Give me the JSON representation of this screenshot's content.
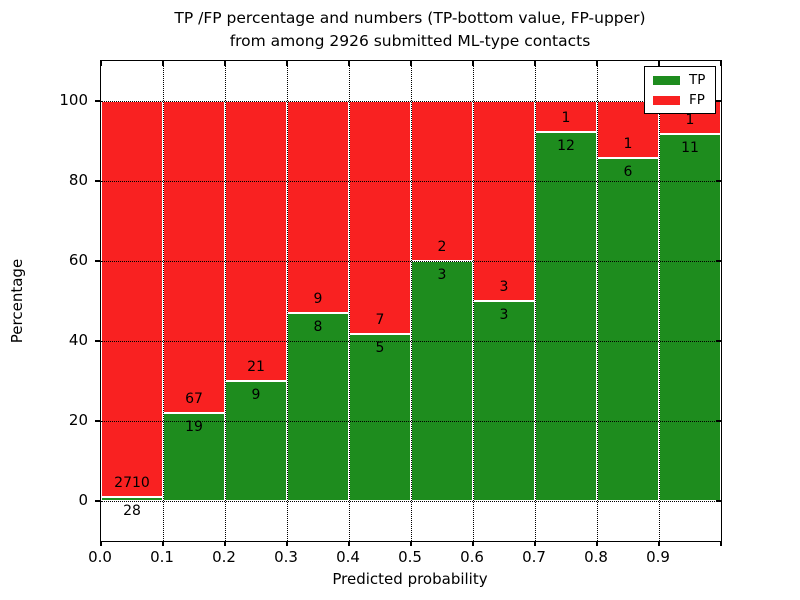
{
  "title": {
    "line1": "TP /FP percentage and numbers (TP-bottom value, FP-upper)",
    "line2": "from among 2926 submitted ML-type contacts"
  },
  "legend": {
    "items": [
      {
        "name": "tp-swatch",
        "label": "TP",
        "color": "#1e8c1e"
      },
      {
        "name": "fp-swatch",
        "label": "FP",
        "color": "#f92121"
      }
    ]
  },
  "chart_data": {
    "type": "bar",
    "stacked": true,
    "normalized": "percent-of-bin",
    "title": "TP /FP percentage and numbers (TP-bottom value, FP-upper) from among 2926 submitted ML-type contacts",
    "xlabel": "Predicted probability",
    "ylabel": "Percentage",
    "total_contacts": 2926,
    "bin_width": 0.1,
    "bin_starts": [
      0.0,
      0.1,
      0.2,
      0.3,
      0.4,
      0.5,
      0.6,
      0.7,
      0.8,
      0.9
    ],
    "xtick_labels": [
      "0.0",
      "0.1",
      "0.2",
      "0.3",
      "0.4",
      "0.5",
      "0.6",
      "0.7",
      "0.8",
      "0.9"
    ],
    "ytick_values": [
      0,
      20,
      40,
      60,
      80,
      100
    ],
    "ylim_visible": [
      0,
      100
    ],
    "grid": {
      "visible": true,
      "style": "dotted",
      "color": "#000000"
    },
    "legend_position": "upper-right",
    "series": [
      {
        "name": "TP",
        "color": "#1e8c1e",
        "counts": [
          28,
          19,
          9,
          8,
          5,
          3,
          3,
          12,
          6,
          11
        ]
      },
      {
        "name": "FP",
        "color": "#f92121",
        "counts": [
          2710,
          67,
          21,
          9,
          7,
          2,
          3,
          1,
          1,
          1
        ]
      }
    ]
  },
  "colors": {
    "background": "#ffffff",
    "text": "#000000",
    "axis": "#000000",
    "bar_edge": "#ffffff",
    "tp_green": "#1e8c1e",
    "fp_red": "#f92121"
  }
}
